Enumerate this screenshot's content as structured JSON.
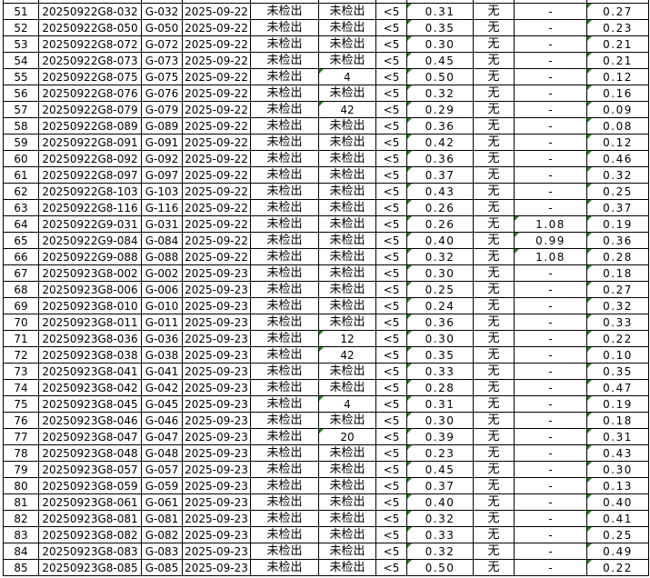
{
  "sheet": {
    "indicator_color": "#1a8a1a",
    "rows": [
      [
        "51",
        "20250922G8-032",
        "G-032",
        "2025-09-22",
        "未检出",
        "未检出",
        "<5",
        "0.31",
        "无",
        "-",
        "0.27"
      ],
      [
        "52",
        "20250922G8-050",
        "G-050",
        "2025-09-22",
        "未检出",
        "未检出",
        "<5",
        "0.35",
        "无",
        "-",
        "0.23"
      ],
      [
        "53",
        "20250922G8-072",
        "G-072",
        "2025-09-22",
        "未检出",
        "未检出",
        "<5",
        "0.30",
        "无",
        "-",
        "0.21"
      ],
      [
        "54",
        "20250922G8-073",
        "G-073",
        "2025-09-22",
        "未检出",
        "未检出",
        "<5",
        "0.45",
        "无",
        "-",
        "0.21"
      ],
      [
        "55",
        "20250922G8-075",
        "G-075",
        "2025-09-22",
        "未检出",
        "4",
        "<5",
        "0.50",
        "无",
        "-",
        "0.12"
      ],
      [
        "56",
        "20250922G8-076",
        "G-076",
        "2025-09-22",
        "未检出",
        "未检出",
        "<5",
        "0.32",
        "无",
        "-",
        "0.16"
      ],
      [
        "57",
        "20250922G8-079",
        "G-079",
        "2025-09-22",
        "未检出",
        "42",
        "<5",
        "0.29",
        "无",
        "-",
        "0.09"
      ],
      [
        "58",
        "20250922G8-089",
        "G-089",
        "2025-09-22",
        "未检出",
        "未检出",
        "<5",
        "0.36",
        "无",
        "-",
        "0.08"
      ],
      [
        "59",
        "20250922G8-091",
        "G-091",
        "2025-09-22",
        "未检出",
        "未检出",
        "<5",
        "0.42",
        "无",
        "-",
        "0.12"
      ],
      [
        "60",
        "20250922G8-092",
        "G-092",
        "2025-09-22",
        "未检出",
        "未检出",
        "<5",
        "0.36",
        "无",
        "-",
        "0.46"
      ],
      [
        "61",
        "20250922G8-097",
        "G-097",
        "2025-09-22",
        "未检出",
        "未检出",
        "<5",
        "0.37",
        "无",
        "-",
        "0.32"
      ],
      [
        "62",
        "20250922G8-103",
        "G-103",
        "2025-09-22",
        "未检出",
        "未检出",
        "<5",
        "0.43",
        "无",
        "-",
        "0.25"
      ],
      [
        "63",
        "20250922G8-116",
        "G-116",
        "2025-09-22",
        "未检出",
        "未检出",
        "<5",
        "0.26",
        "无",
        "-",
        "0.37"
      ],
      [
        "64",
        "20250922G9-031",
        "G-031",
        "2025-09-22",
        "未检出",
        "未检出",
        "<5",
        "0.26",
        "无",
        "1.08",
        "0.19"
      ],
      [
        "65",
        "20250922G9-084",
        "G-084",
        "2025-09-22",
        "未检出",
        "未检出",
        "<5",
        "0.40",
        "无",
        "0.99",
        "0.36"
      ],
      [
        "66",
        "20250922G9-088",
        "G-088",
        "2025-09-22",
        "未检出",
        "未检出",
        "<5",
        "0.32",
        "无",
        "1.08",
        "0.28"
      ],
      [
        "67",
        "20250923G8-002",
        "G-002",
        "2025-09-23",
        "未检出",
        "未检出",
        "<5",
        "0.30",
        "无",
        "-",
        "0.18"
      ],
      [
        "68",
        "20250923G8-006",
        "G-006",
        "2025-09-23",
        "未检出",
        "未检出",
        "<5",
        "0.25",
        "无",
        "-",
        "0.27"
      ],
      [
        "69",
        "20250923G8-010",
        "G-010",
        "2025-09-23",
        "未检出",
        "未检出",
        "<5",
        "0.24",
        "无",
        "-",
        "0.32"
      ],
      [
        "70",
        "20250923G8-011",
        "G-011",
        "2025-09-23",
        "未检出",
        "未检出",
        "<5",
        "0.36",
        "无",
        "-",
        "0.33"
      ],
      [
        "71",
        "20250923G8-036",
        "G-036",
        "2025-09-23",
        "未检出",
        "12",
        "<5",
        "0.30",
        "无",
        "-",
        "0.22"
      ],
      [
        "72",
        "20250923G8-038",
        "G-038",
        "2025-09-23",
        "未检出",
        "42",
        "<5",
        "0.35",
        "无",
        "-",
        "0.10"
      ],
      [
        "73",
        "20250923G8-041",
        "G-041",
        "2025-09-23",
        "未检出",
        "未检出",
        "<5",
        "0.33",
        "无",
        "-",
        "0.35"
      ],
      [
        "74",
        "20250923G8-042",
        "G-042",
        "2025-09-23",
        "未检出",
        "未检出",
        "<5",
        "0.28",
        "无",
        "-",
        "0.47"
      ],
      [
        "75",
        "20250923G8-045",
        "G-045",
        "2025-09-23",
        "未检出",
        "4",
        "<5",
        "0.31",
        "无",
        "-",
        "0.19"
      ],
      [
        "76",
        "20250923G8-046",
        "G-046",
        "2025-09-23",
        "未检出",
        "未检出",
        "<5",
        "0.30",
        "无",
        "-",
        "0.18"
      ],
      [
        "77",
        "20250923G8-047",
        "G-047",
        "2025-09-23",
        "未检出",
        "20",
        "<5",
        "0.39",
        "无",
        "-",
        "0.31"
      ],
      [
        "78",
        "20250923G8-048",
        "G-048",
        "2025-09-23",
        "未检出",
        "未检出",
        "<5",
        "0.23",
        "无",
        "-",
        "0.43"
      ],
      [
        "79",
        "20250923G8-057",
        "G-057",
        "2025-09-23",
        "未检出",
        "未检出",
        "<5",
        "0.45",
        "无",
        "-",
        "0.30"
      ],
      [
        "80",
        "20250923G8-059",
        "G-059",
        "2025-09-23",
        "未检出",
        "未检出",
        "<5",
        "0.37",
        "无",
        "-",
        "0.13"
      ],
      [
        "81",
        "20250923G8-061",
        "G-061",
        "2025-09-23",
        "未检出",
        "未检出",
        "<5",
        "0.40",
        "无",
        "-",
        "0.40"
      ],
      [
        "82",
        "20250923G8-081",
        "G-081",
        "2025-09-23",
        "未检出",
        "未检出",
        "<5",
        "0.32",
        "无",
        "-",
        "0.41"
      ],
      [
        "83",
        "20250923G8-082",
        "G-082",
        "2025-09-23",
        "未检出",
        "未检出",
        "<5",
        "0.33",
        "无",
        "-",
        "0.25"
      ],
      [
        "84",
        "20250923G8-083",
        "G-083",
        "2025-09-23",
        "未检出",
        "未检出",
        "<5",
        "0.32",
        "无",
        "-",
        "0.49"
      ],
      [
        "85",
        "20250923G8-085",
        "G-085",
        "2025-09-23",
        "未检出",
        "未检出",
        "<5",
        "0.50",
        "无",
        "-",
        "0.22"
      ]
    ]
  }
}
